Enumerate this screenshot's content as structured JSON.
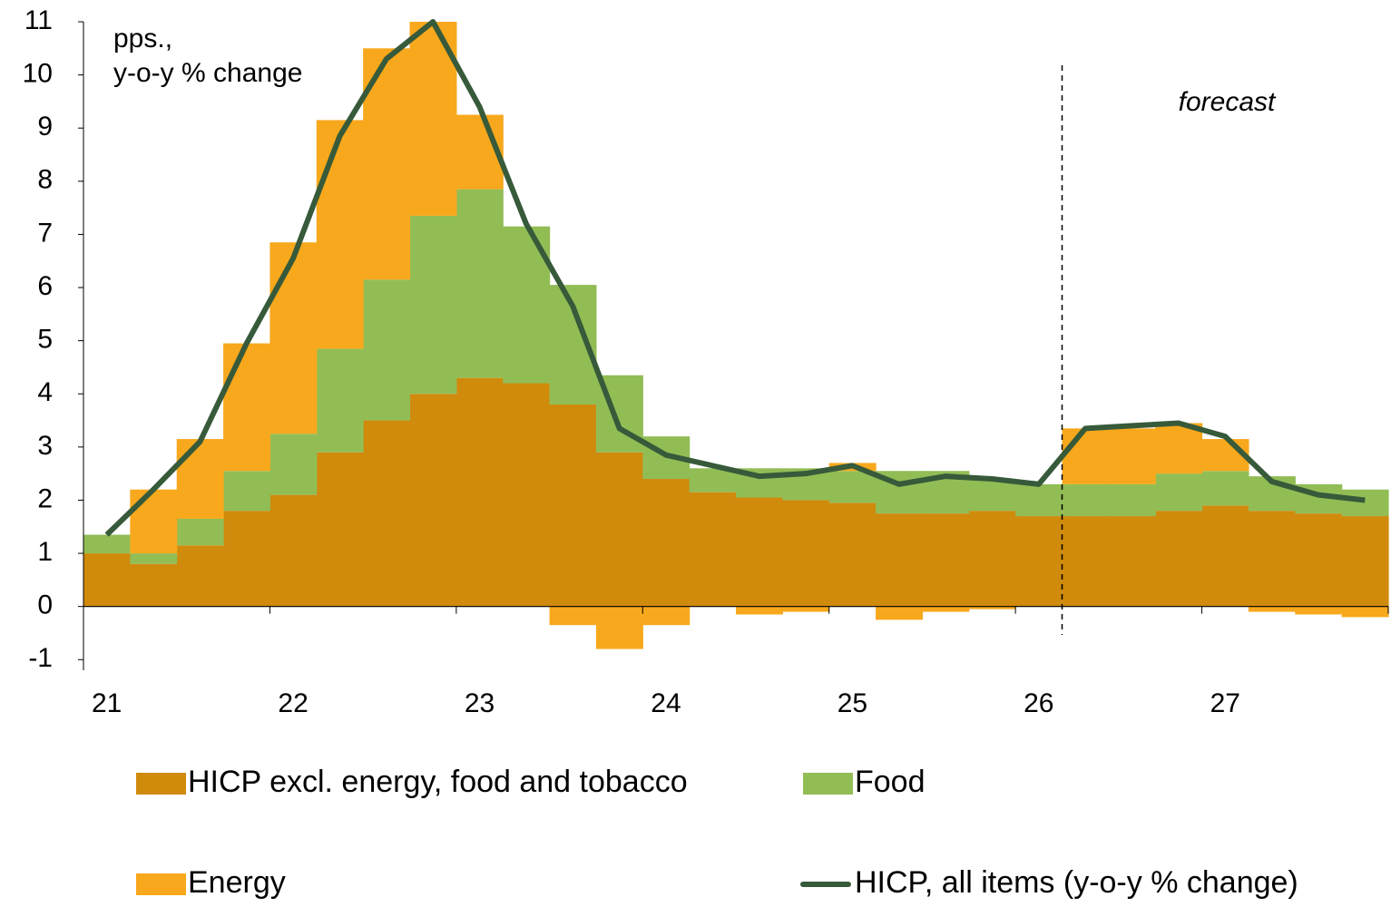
{
  "chart_data": {
    "type": "stacked_bar_line",
    "y_label_lines": [
      "pps.,",
      "y-o-y % change"
    ],
    "forecast_label": "forecast",
    "forecast_from": 21,
    "categories": [
      "21",
      null,
      null,
      null,
      "22",
      null,
      null,
      null,
      "23",
      null,
      null,
      null,
      "24",
      null,
      null,
      null,
      "25",
      null,
      null,
      null,
      "26",
      null,
      null,
      null,
      "27",
      null,
      null,
      null
    ],
    "series": [
      {
        "name": "HICP excl. energy, food and tobacco",
        "color": "#d08a0c",
        "kind": "bar",
        "values": [
          1.0,
          0.8,
          1.15,
          1.8,
          2.1,
          2.9,
          3.5,
          4.0,
          4.3,
          4.2,
          3.8,
          2.9,
          2.4,
          2.15,
          2.05,
          2.0,
          1.95,
          1.75,
          1.75,
          1.8,
          1.7,
          1.7,
          1.7,
          1.8,
          1.9,
          1.8,
          1.75,
          1.7
        ]
      },
      {
        "name": "Food",
        "color": "#92bd55",
        "kind": "bar",
        "values": [
          0.35,
          0.2,
          0.5,
          0.75,
          1.15,
          1.95,
          2.65,
          3.35,
          3.55,
          2.95,
          2.25,
          1.45,
          0.8,
          0.45,
          0.55,
          0.6,
          0.6,
          0.8,
          0.8,
          0.6,
          0.6,
          0.6,
          0.6,
          0.7,
          0.65,
          0.65,
          0.55,
          0.5
        ]
      },
      {
        "name": "Energy",
        "color": "#f8a81c",
        "kind": "bar",
        "values": [
          0,
          1.2,
          1.5,
          2.4,
          3.6,
          4.3,
          4.35,
          3.65,
          1.4,
          0,
          -0.35,
          -0.8,
          -0.35,
          0,
          -0.15,
          -0.1,
          0.15,
          -0.25,
          -0.1,
          -0.05,
          0,
          1.05,
          1.05,
          0.95,
          0.6,
          -0.1,
          -0.15,
          -0.2
        ]
      },
      {
        "name": "HICP, all items (y-o-y % change)",
        "color": "#375a3a",
        "kind": "line",
        "values": [
          1.35,
          2.2,
          3.1,
          4.95,
          6.55,
          8.85,
          10.3,
          11,
          9.4,
          7.2,
          5.65,
          3.35,
          2.85,
          2.65,
          2.45,
          2.5,
          2.65,
          2.3,
          2.45,
          2.4,
          2.3,
          3.35,
          3.4,
          3.45,
          3.2,
          2.35,
          2.1,
          2.0
        ]
      }
    ],
    "ylim": [
      -1.2,
      11
    ],
    "yticks": [
      -1,
      0,
      1,
      2,
      3,
      4,
      5,
      6,
      7,
      8,
      9,
      10,
      11
    ]
  }
}
